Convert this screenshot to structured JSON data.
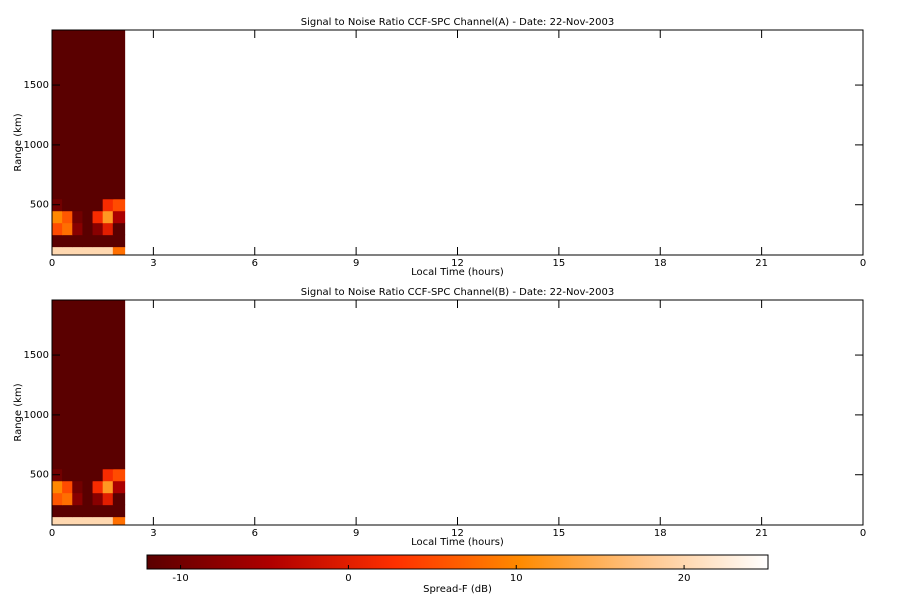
{
  "chart_data": [
    {
      "type": "heatmap",
      "title": "Signal to Noise Ratio CCF-SPC Channel(A) - Date: 22-Nov-2003",
      "xlabel": "Local Time (hours)",
      "ylabel": "Range (km)",
      "x": [
        0,
        0.3,
        0.6,
        0.9,
        1.2,
        1.5,
        1.8,
        2.15
      ],
      "y": [
        80,
        150,
        250,
        350,
        450,
        550,
        1960
      ],
      "values": [
        [
          20,
          20,
          20,
          20,
          20,
          20,
          8
        ],
        [
          -12,
          -12,
          -12,
          -12,
          -12,
          -12,
          -12
        ],
        [
          5,
          8,
          -8,
          -12,
          -8,
          0,
          -12
        ],
        [
          10,
          6,
          -10,
          -12,
          2,
          12,
          -5
        ],
        [
          -10,
          -12,
          -12,
          -12,
          -12,
          2,
          5
        ],
        [
          -12,
          -12,
          -12,
          -12,
          -12,
          -12,
          -12
        ]
      ],
      "xlim": [
        0,
        24
      ],
      "xticks": [
        0,
        3,
        6,
        9,
        12,
        15,
        18,
        21,
        {
          "value": 24,
          "label": "0"
        }
      ],
      "ylim": [
        80,
        1960
      ],
      "yticks": [
        500,
        1000,
        1500
      ]
    },
    {
      "type": "heatmap",
      "title": "Signal to Noise Ratio CCF-SPC Channel(B) - Date: 22-Nov-2003",
      "xlabel": "Local Time (hours)",
      "ylabel": "Range (km)",
      "x": [
        0,
        0.3,
        0.6,
        0.9,
        1.2,
        1.5,
        1.8,
        2.15
      ],
      "y": [
        80,
        150,
        250,
        350,
        450,
        550,
        1960
      ],
      "values": [
        [
          20,
          20,
          20,
          20,
          20,
          20,
          8
        ],
        [
          -12,
          -12,
          -12,
          -12,
          -12,
          -12,
          -12
        ],
        [
          6,
          8,
          -8,
          -12,
          -8,
          0,
          -12
        ],
        [
          10,
          5,
          -10,
          -12,
          2,
          12,
          -5
        ],
        [
          -10,
          -12,
          -12,
          -12,
          -12,
          2,
          5
        ],
        [
          -12,
          -12,
          -12,
          -12,
          -12,
          -12,
          -12
        ]
      ],
      "xlim": [
        0,
        24
      ],
      "xticks": [
        0,
        3,
        6,
        9,
        12,
        15,
        18,
        21,
        {
          "value": 24,
          "label": "0"
        }
      ],
      "ylim": [
        80,
        1960
      ],
      "yticks": [
        500,
        1000,
        1500
      ]
    },
    {
      "type": "colorbar",
      "xlabel": "Spread-F (dB)",
      "xlim": [
        -12,
        25
      ],
      "xticks": [
        -10,
        0,
        10,
        20
      ],
      "colors": [
        "#5a0000",
        "#b00000",
        "#ff3000",
        "#ff8a00",
        "#ffc58a",
        "#ffffff"
      ]
    }
  ]
}
